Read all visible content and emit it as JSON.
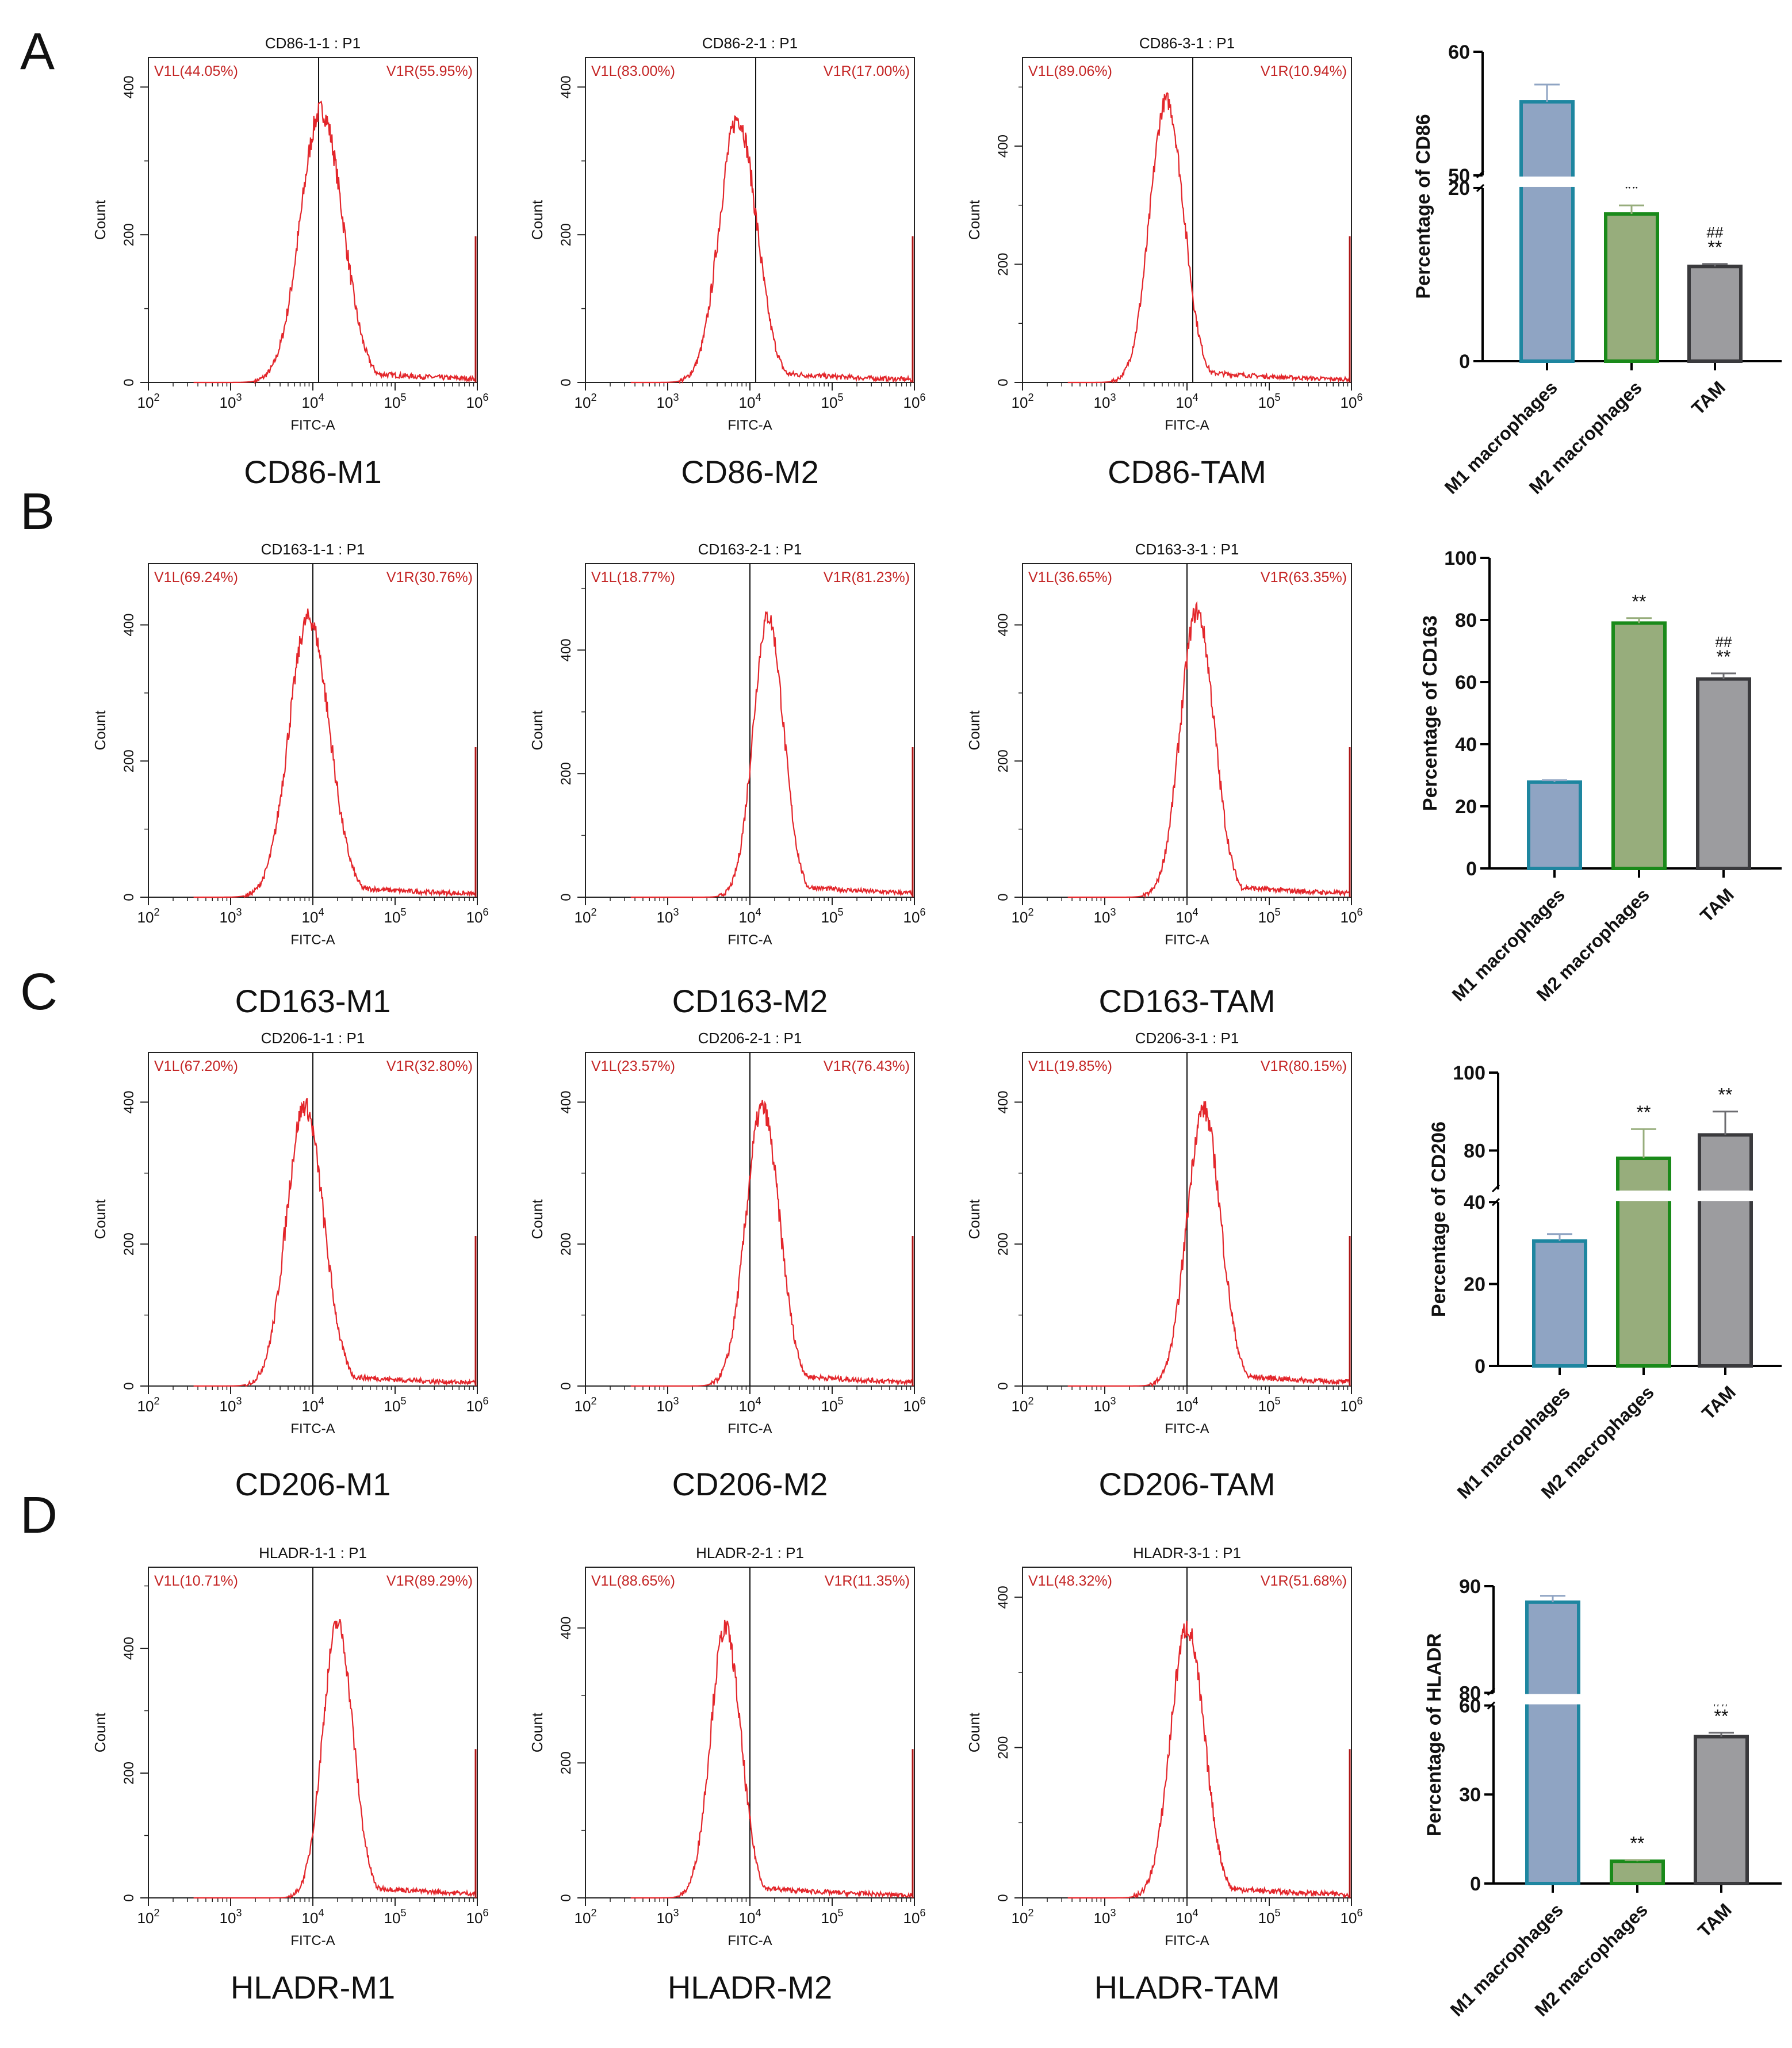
{
  "colors": {
    "histogram": "#e3262b",
    "gate_text": "#c42424",
    "axis": "#222222",
    "m1_fill": "#8fa4c3",
    "m1_stroke": "#1e86a0",
    "m2_fill": "#97ad7c",
    "m2_stroke": "#1a8a1a",
    "tam_fill": "#9c9c9f",
    "tam_stroke": "#3a3a3d",
    "errbar_m1": "#8fa4c3",
    "errbar_m2": "#97ad7c",
    "errbar_tam": "#6c6c70"
  },
  "panels": [
    {
      "letter": "A",
      "histograms": [
        {
          "title": "CD86-1-1 : P1",
          "gate_left": "V1L(44.05%)",
          "gate_right": "V1R(55.95%)",
          "caption": "CD86-M1",
          "xlabel": "FITC-A",
          "ylabel": "Count",
          "y_ticks": [
            "0",
            "200",
            "400"
          ],
          "y_max": 440,
          "peak_log10": 4.1,
          "peak_count": 368,
          "width": 0.25,
          "gate_log10": 4.07
        },
        {
          "title": "CD86-2-1 : P1",
          "gate_left": "V1L(83.00%)",
          "gate_right": "V1R(17.00%)",
          "caption": "CD86-M2",
          "xlabel": "FITC-A",
          "ylabel": "Count",
          "y_ticks": [
            "0",
            "200",
            "400"
          ],
          "y_max": 440,
          "peak_log10": 3.85,
          "peak_count": 358,
          "width": 0.22,
          "gate_log10": 4.07
        },
        {
          "title": "CD86-3-1 : P1",
          "gate_left": "V1L(89.06%)",
          "gate_right": "V1R(10.94%)",
          "caption": "CD86-TAM",
          "xlabel": "FITC-A",
          "ylabel": "Count",
          "y_ticks": [
            "0",
            "200",
            "400"
          ],
          "y_max": 550,
          "peak_log10": 3.75,
          "peak_count": 478,
          "width": 0.2,
          "gate_log10": 4.07
        }
      ],
      "bar_chart": {
        "type": "bar",
        "ylabel": "Percentage of CD86",
        "categories": [
          "M1 macrophages",
          "M2 macrophages",
          "TAM"
        ],
        "values": [
          55.95,
          17.0,
          10.94
        ],
        "errors": [
          1.4,
          1.0,
          0.3
        ],
        "annotations": [
          [
            "",
            ""
          ],
          [
            "",
            "**"
          ],
          [
            "##",
            "**"
          ]
        ],
        "axis_break": {
          "lower_range": [
            0,
            20
          ],
          "upper_range": [
            50,
            60
          ]
        },
        "upper_ticks": [
          "50",
          "60"
        ],
        "lower_ticks": [
          "0",
          "20"
        ]
      }
    },
    {
      "letter": "B",
      "histograms": [
        {
          "title": "CD163-1-1 : P1",
          "gate_left": "V1L(69.24%)",
          "gate_right": "V1R(30.76%)",
          "caption": "CD163-M1",
          "xlabel": "FITC-A",
          "ylabel": "Count",
          "y_ticks": [
            "0",
            "200",
            "400"
          ],
          "y_max": 490,
          "peak_log10": 3.95,
          "peak_count": 410,
          "width": 0.24,
          "gate_log10": 4.0
        },
        {
          "title": "CD163-2-1 : P1",
          "gate_left": "V1L(18.77%)",
          "gate_right": "V1R(81.23%)",
          "caption": "CD163-M2",
          "xlabel": "FITC-A",
          "ylabel": "Count",
          "y_ticks": [
            "0",
            "200",
            "400"
          ],
          "y_max": 540,
          "peak_log10": 4.22,
          "peak_count": 455,
          "width": 0.18,
          "gate_log10": 4.0
        },
        {
          "title": "CD163-3-1 : P1",
          "gate_left": "V1L(36.65%)",
          "gate_right": "V1R(63.35%)",
          "caption": "CD163-TAM",
          "xlabel": "FITC-A",
          "ylabel": "Count",
          "y_ticks": [
            "0",
            "200",
            "400"
          ],
          "y_max": 490,
          "peak_log10": 4.12,
          "peak_count": 420,
          "width": 0.2,
          "gate_log10": 4.0
        }
      ],
      "bar_chart": {
        "type": "bar",
        "ylabel": "Percentage of CD163",
        "categories": [
          "M1 macrophages",
          "M2 macrophages",
          "TAM"
        ],
        "values": [
          27.8,
          79.0,
          61.0
        ],
        "errors": [
          0.6,
          1.6,
          1.8
        ],
        "annotations": [
          [
            "",
            ""
          ],
          [
            "",
            "**"
          ],
          [
            "##",
            "**"
          ]
        ],
        "ylim": [
          0,
          100
        ],
        "y_ticks": [
          "0",
          "20",
          "40",
          "60",
          "80",
          "100"
        ]
      }
    },
    {
      "letter": "C",
      "histograms": [
        {
          "title": "CD206-1-1 : P1",
          "gate_left": "V1L(67.20%)",
          "gate_right": "V1R(32.80%)",
          "caption": "CD206-M1",
          "xlabel": "FITC-A",
          "ylabel": "Count",
          "y_ticks": [
            "0",
            "200",
            "400"
          ],
          "y_max": 470,
          "peak_log10": 3.9,
          "peak_count": 395,
          "width": 0.22,
          "gate_log10": 4.0
        },
        {
          "title": "CD206-2-1 : P1",
          "gate_left": "V1L(23.57%)",
          "gate_right": "V1R(76.43%)",
          "caption": "CD206-M2",
          "xlabel": "FITC-A",
          "ylabel": "Count",
          "y_ticks": [
            "0",
            "200",
            "400"
          ],
          "y_max": 470,
          "peak_log10": 4.15,
          "peak_count": 392,
          "width": 0.2,
          "gate_log10": 4.0
        },
        {
          "title": "CD206-3-1 : P1",
          "gate_left": "V1L(19.85%)",
          "gate_right": "V1R(80.15%)",
          "caption": "CD206-TAM",
          "xlabel": "FITC-A",
          "ylabel": "Count",
          "y_ticks": [
            "0",
            "200",
            "400"
          ],
          "y_max": 470,
          "peak_log10": 4.2,
          "peak_count": 390,
          "width": 0.2,
          "gate_log10": 4.0
        }
      ],
      "bar_chart": {
        "type": "bar",
        "ylabel": "Percentage of CD206",
        "categories": [
          "M1 macrophages",
          "M2 macrophages",
          "TAM"
        ],
        "values": [
          30.5,
          78.0,
          84.0
        ],
        "errors": [
          1.7,
          7.5,
          6.0
        ],
        "annotations": [
          [
            "",
            ""
          ],
          [
            "",
            "**"
          ],
          [
            "",
            "**"
          ]
        ],
        "axis_break": {
          "lower_range": [
            0,
            40
          ],
          "upper_range": [
            70,
            100
          ]
        },
        "upper_ticks": [
          "80",
          "100"
        ],
        "lower_ticks": [
          "0",
          "20",
          "40"
        ]
      }
    },
    {
      "letter": "D",
      "histograms": [
        {
          "title": "HLADR-1-1 : P1",
          "gate_left": "V1L(10.71%)",
          "gate_right": "V1R(89.29%)",
          "caption": "HLADR-M1",
          "xlabel": "FITC-A",
          "ylabel": "Count",
          "y_ticks": [
            "0",
            "200",
            "400"
          ],
          "y_max": 530,
          "peak_log10": 4.3,
          "peak_count": 440,
          "width": 0.18,
          "gate_log10": 4.0
        },
        {
          "title": "HLADR-2-1 : P1",
          "gate_left": "V1L(88.65%)",
          "gate_right": "V1R(11.35%)",
          "caption": "HLADR-M2",
          "xlabel": "FITC-A",
          "ylabel": "Count",
          "y_ticks": [
            "0",
            "200",
            "400"
          ],
          "y_max": 490,
          "peak_log10": 3.7,
          "peak_count": 400,
          "width": 0.18,
          "gate_log10": 4.0
        },
        {
          "title": "HLADR-3-1 : P1",
          "gate_left": "V1L(48.32%)",
          "gate_right": "V1R(51.68%)",
          "caption": "HLADR-TAM",
          "xlabel": "FITC-A",
          "ylabel": "Count",
          "y_ticks": [
            "0",
            "200",
            "400"
          ],
          "y_max": 440,
          "peak_log10": 4.0,
          "peak_count": 360,
          "width": 0.2,
          "gate_log10": 4.0
        }
      ],
      "bar_chart": {
        "type": "bar",
        "ylabel": "Percentage of  HLADR",
        "categories": [
          "M1 macrophages",
          "M2 macrophages",
          "TAM"
        ],
        "values": [
          88.5,
          7.5,
          49.5
        ],
        "errors": [
          0.6,
          0.4,
          1.3
        ],
        "annotations": [
          [
            "",
            ""
          ],
          [
            "",
            "**"
          ],
          [
            "##",
            "**"
          ]
        ],
        "axis_break": {
          "lower_range": [
            0,
            60
          ],
          "upper_range": [
            80,
            90
          ]
        },
        "upper_ticks": [
          "80",
          "90"
        ],
        "lower_ticks": [
          "0",
          "30",
          "60"
        ]
      }
    }
  ],
  "chart_data": [
    {
      "type": "bar",
      "title": "A",
      "ylabel": "Percentage of CD86",
      "categories": [
        "M1 macrophages",
        "M2 macrophages",
        "TAM"
      ],
      "values": [
        55.95,
        17.0,
        10.94
      ]
    },
    {
      "type": "bar",
      "title": "B",
      "ylabel": "Percentage of CD163",
      "categories": [
        "M1 macrophages",
        "M2 macrophages",
        "TAM"
      ],
      "values": [
        27.8,
        79.0,
        61.0
      ],
      "ylim": [
        0,
        100
      ]
    },
    {
      "type": "bar",
      "title": "C",
      "ylabel": "Percentage of CD206",
      "categories": [
        "M1 macrophages",
        "M2 macrophages",
        "TAM"
      ],
      "values": [
        30.5,
        78.0,
        84.0
      ]
    },
    {
      "type": "bar",
      "title": "D",
      "ylabel": "Percentage of  HLADR",
      "categories": [
        "M1 macrophages",
        "M2 macrophages",
        "TAM"
      ],
      "values": [
        88.5,
        7.5,
        49.5
      ]
    }
  ]
}
